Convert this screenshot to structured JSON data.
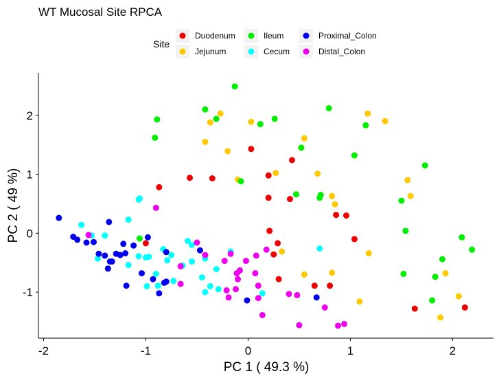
{
  "chart_data": {
    "type": "scatter",
    "title": "WT Mucosal Site RPCA",
    "xlabel": "PC 1 ( 49.3 %)",
    "ylabel": "PC 2 ( 49 %)",
    "xlim": [
      -2.05,
      2.4
    ],
    "ylim": [
      -1.78,
      2.72
    ],
    "x_ticks": [
      -2,
      -1,
      0,
      1,
      2
    ],
    "x_tick_labels": [
      "-2",
      "-1",
      "0",
      "1",
      "2"
    ],
    "y_ticks": [
      -1,
      0,
      1,
      2
    ],
    "y_tick_labels": [
      "-1",
      "0",
      "1",
      "2"
    ],
    "grid": false,
    "legend": {
      "title": "Site",
      "placement": "top",
      "entries": [
        "Duodenum",
        "Jejunum",
        "Ileum",
        "Cecum",
        "Proximal_Colon",
        "Distal_Colon"
      ]
    },
    "series": [
      {
        "name": "Duodenum",
        "color": "#ee0000",
        "points": [
          [
            -0.87,
            0.78
          ],
          [
            -0.57,
            0.94
          ],
          [
            -0.35,
            0.93
          ],
          [
            0.03,
            1.43
          ],
          [
            0.43,
            1.24
          ],
          [
            0.2,
            0.98
          ],
          [
            0.2,
            0.6
          ],
          [
            0.41,
            0.58
          ],
          [
            0.21,
            0.04
          ],
          [
            0.29,
            -0.17
          ],
          [
            0.25,
            -0.36
          ],
          [
            0.3,
            -0.78
          ],
          [
            0.65,
            -0.89
          ],
          [
            0.8,
            -0.89
          ],
          [
            0.86,
            0.31
          ],
          [
            0.96,
            0.3
          ],
          [
            1.04,
            -0.1
          ],
          [
            -1.0,
            -0.17
          ],
          [
            1.63,
            -1.28
          ],
          [
            2.12,
            -1.26
          ]
        ]
      },
      {
        "name": "Jejunum",
        "color": "#ffc800",
        "points": [
          [
            -0.37,
            1.88
          ],
          [
            -0.27,
            2.03
          ],
          [
            -0.42,
            1.55
          ],
          [
            -0.2,
            1.39
          ],
          [
            0.03,
            1.89
          ],
          [
            0.27,
            1.02
          ],
          [
            -0.1,
            0.91
          ],
          [
            0.55,
            1.61
          ],
          [
            0.52,
            1.45
          ],
          [
            0.68,
            1.01
          ],
          [
            0.82,
            0.63
          ],
          [
            0.85,
            0.49
          ],
          [
            1.17,
            2.03
          ],
          [
            1.34,
            1.9
          ],
          [
            1.56,
            0.9
          ],
          [
            1.59,
            0.63
          ],
          [
            0.33,
            -0.31
          ],
          [
            0.55,
            -0.7
          ],
          [
            0.82,
            -0.67
          ],
          [
            1.18,
            -0.34
          ],
          [
            1.09,
            -1.16
          ],
          [
            1.93,
            -0.68
          ],
          [
            2.06,
            -1.07
          ],
          [
            1.88,
            -1.43
          ]
        ]
      },
      {
        "name": "Ileum",
        "color": "#00ee00",
        "points": [
          [
            -0.13,
            2.49
          ],
          [
            -0.42,
            2.1
          ],
          [
            -0.89,
            1.93
          ],
          [
            -0.31,
            1.94
          ],
          [
            0.12,
            1.85
          ],
          [
            0.26,
            1.94
          ],
          [
            -0.07,
            0.88
          ],
          [
            0.79,
            2.12
          ],
          [
            0.52,
            1.45
          ],
          [
            1.04,
            1.32
          ],
          [
            1.15,
            1.83
          ],
          [
            1.73,
            1.15
          ],
          [
            1.5,
            0.55
          ],
          [
            0.47,
            0.66
          ],
          [
            0.71,
            0.65
          ],
          [
            0.7,
            0.6
          ],
          [
            -0.91,
            1.62
          ],
          [
            -1.06,
            -0.09
          ],
          [
            1.54,
            0.04
          ],
          [
            2.09,
            -0.07
          ],
          [
            2.19,
            -0.28
          ],
          [
            1.9,
            -0.44
          ],
          [
            1.52,
            -0.69
          ],
          [
            1.83,
            -0.74
          ],
          [
            1.8,
            -1.14
          ]
        ]
      },
      {
        "name": "Cecum",
        "color": "#00ffff",
        "points": [
          [
            -1.63,
            0.14
          ],
          [
            -1.53,
            -0.04
          ],
          [
            -1.47,
            -0.43
          ],
          [
            -1.4,
            -0.04
          ],
          [
            -1.17,
            -0.54
          ],
          [
            -1.17,
            0.23
          ],
          [
            -1.07,
            0.57
          ],
          [
            -1.06,
            0.59
          ],
          [
            -1.07,
            -0.39
          ],
          [
            -1.0,
            -0.41
          ],
          [
            -0.97,
            -0.4
          ],
          [
            -0.99,
            -0.9
          ],
          [
            -0.9,
            -0.69
          ],
          [
            -0.83,
            -0.27
          ],
          [
            -0.79,
            -0.46
          ],
          [
            -0.75,
            -0.37
          ],
          [
            -0.73,
            -0.81
          ],
          [
            -0.64,
            -0.55
          ],
          [
            -0.59,
            -0.13
          ],
          [
            -0.55,
            -0.2
          ],
          [
            -0.55,
            -0.48
          ],
          [
            -0.45,
            -0.75
          ],
          [
            -0.42,
            -0.43
          ],
          [
            -0.37,
            -0.9
          ],
          [
            -0.31,
            -0.61
          ],
          [
            -0.29,
            -0.95
          ],
          [
            -0.17,
            -0.31
          ],
          [
            0.14,
            -1.02
          ],
          [
            0.7,
            -0.26
          ],
          [
            -0.88,
            -0.89
          ],
          [
            -0.42,
            -1.0
          ]
        ]
      },
      {
        "name": "Proximal_Colon",
        "color": "#0000ee",
        "points": [
          [
            -1.85,
            0.26
          ],
          [
            -1.71,
            -0.06
          ],
          [
            -1.67,
            -0.11
          ],
          [
            -1.58,
            -0.16
          ],
          [
            -1.46,
            -0.35
          ],
          [
            -1.4,
            -0.38
          ],
          [
            -1.37,
            -0.6
          ],
          [
            -1.36,
            0.19
          ],
          [
            -1.35,
            -0.48
          ],
          [
            -1.33,
            -0.48
          ],
          [
            -1.29,
            -0.35
          ],
          [
            -1.25,
            -0.37
          ],
          [
            -1.22,
            -0.18
          ],
          [
            -1.2,
            -0.34
          ],
          [
            -1.19,
            -0.89
          ],
          [
            -1.12,
            -0.21
          ],
          [
            -1.04,
            -0.68
          ],
          [
            -0.98,
            -0.07
          ],
          [
            -0.93,
            -0.78
          ],
          [
            -0.87,
            -1.02
          ],
          [
            -0.82,
            -0.84
          ],
          [
            -0.8,
            -0.82
          ],
          [
            -0.8,
            -0.32
          ],
          [
            -0.47,
            -0.29
          ],
          [
            -0.01,
            -1.14
          ],
          [
            0.67,
            -1.09
          ],
          [
            -1.51,
            -0.15
          ]
        ]
      },
      {
        "name": "Distal_Colon",
        "color": "#ee00ee",
        "points": [
          [
            -1.56,
            -0.03
          ],
          [
            -0.9,
            0.43
          ],
          [
            -0.66,
            -0.56
          ],
          [
            -0.5,
            -0.16
          ],
          [
            -0.42,
            -0.37
          ],
          [
            -0.66,
            -0.86
          ],
          [
            -0.23,
            -0.47
          ],
          [
            -0.17,
            -0.35
          ],
          [
            -0.11,
            -0.68
          ],
          [
            -0.08,
            -0.63
          ],
          [
            -0.1,
            -0.78
          ],
          [
            -0.12,
            -0.95
          ],
          [
            -0.19,
            -1.09
          ],
          [
            -0.21,
            -0.97
          ],
          [
            -0.02,
            -0.47
          ],
          [
            0.08,
            -0.38
          ],
          [
            0.07,
            -0.68
          ],
          [
            0.18,
            -0.28
          ],
          [
            0.1,
            -0.89
          ],
          [
            0.4,
            -1.03
          ],
          [
            0.48,
            -1.05
          ],
          [
            0.5,
            -1.56
          ],
          [
            0.75,
            -1.26
          ],
          [
            0.88,
            -1.57
          ],
          [
            0.94,
            -1.54
          ],
          [
            0.14,
            -1.39
          ],
          [
            0.1,
            -1.1
          ]
        ]
      }
    ]
  }
}
